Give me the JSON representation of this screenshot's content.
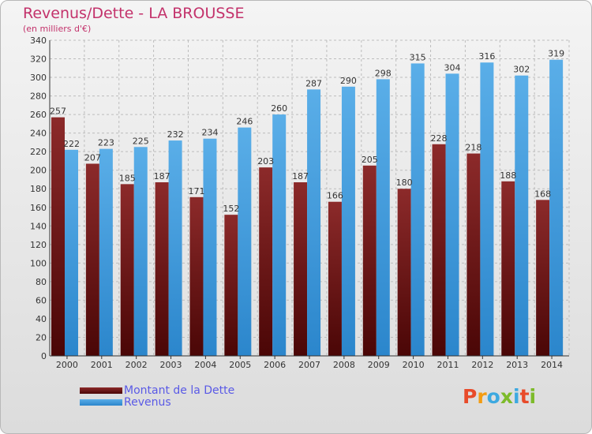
{
  "header": {
    "title": "Revenus/Dette - LA BROUSSE",
    "subtitle": "(en milliers d'€)"
  },
  "colors": {
    "dette": "#7a1f1f",
    "revenus": "#3d9de0",
    "title": "#c3326b",
    "legend_text": "#5a5ae6"
  },
  "chart_data": {
    "type": "bar",
    "title": "Revenus/Dette - LA BROUSSE",
    "ylabel": "(en milliers d'€)",
    "categories": [
      "2000",
      "2001",
      "2002",
      "2003",
      "2004",
      "2005",
      "2006",
      "2007",
      "2008",
      "2009",
      "2010",
      "2011",
      "2012",
      "2013",
      "2014"
    ],
    "series": [
      {
        "name": "Montant de la Dette",
        "values": [
          257,
          207,
          185,
          187,
          171,
          152,
          203,
          187,
          166,
          205,
          180,
          228,
          218,
          188,
          168
        ]
      },
      {
        "name": "Revenus",
        "values": [
          222,
          223,
          225,
          232,
          234,
          246,
          260,
          287,
          290,
          298,
          315,
          304,
          316,
          302,
          319
        ]
      }
    ],
    "ylim": [
      0,
      340
    ],
    "yticks": [
      0,
      20,
      40,
      60,
      80,
      100,
      120,
      140,
      160,
      180,
      200,
      220,
      240,
      260,
      280,
      300,
      320,
      340
    ],
    "grid": true,
    "legend": "bottom-left"
  },
  "legend": {
    "items": [
      {
        "label": "Montant de la Dette",
        "color": "#7a1f1f"
      },
      {
        "label": "Revenus",
        "color": "#3d9de0"
      }
    ]
  },
  "logo": {
    "text": "Proxiti",
    "letter_colors": [
      "#e84b2a",
      "#f39c12",
      "#3da9e0",
      "#7dbb2a",
      "#3da9e0",
      "#e84b2a",
      "#7dbb2a"
    ]
  }
}
